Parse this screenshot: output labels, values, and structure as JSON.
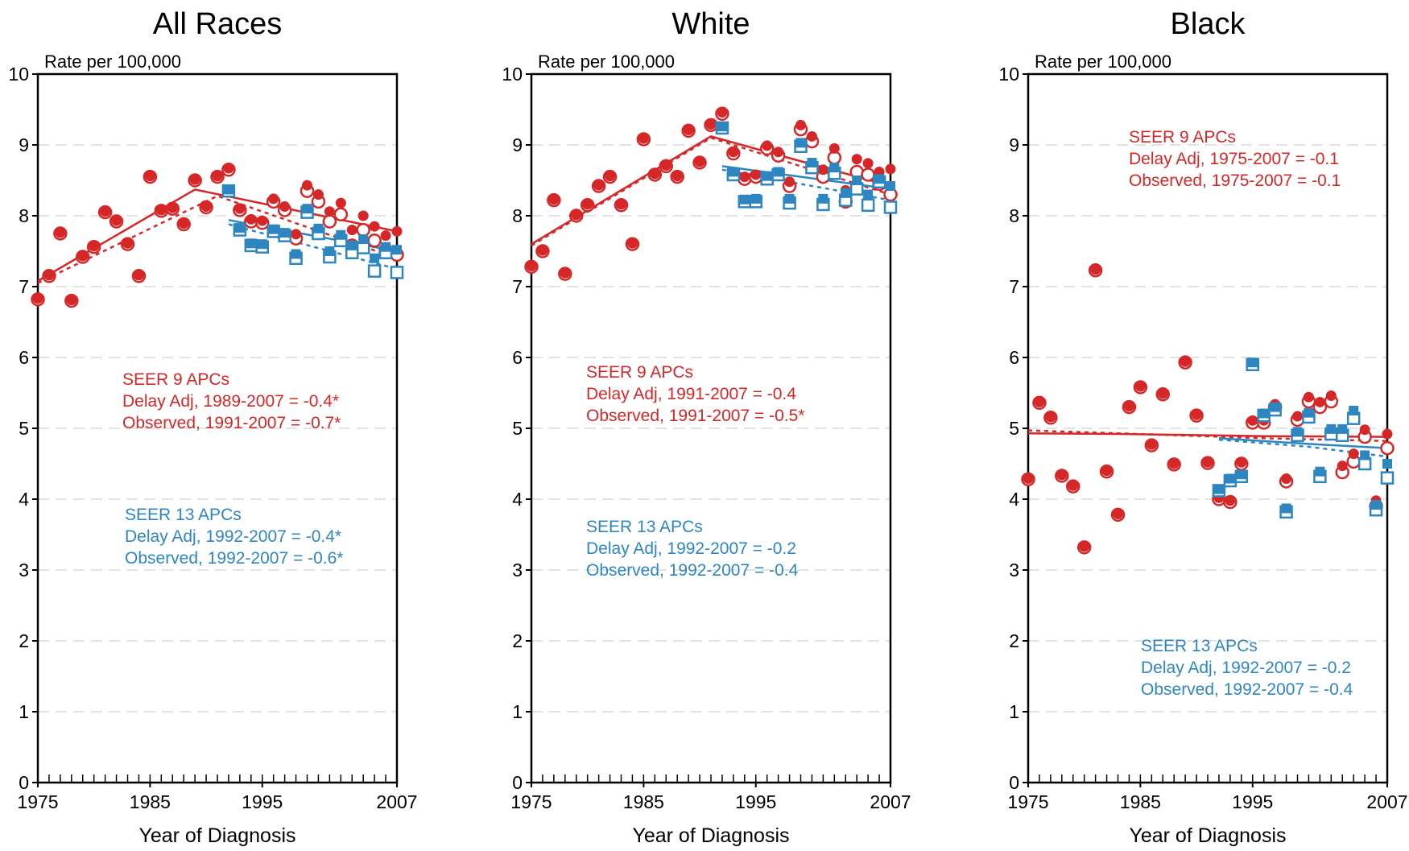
{
  "colors": {
    "seer9": "#d62728",
    "seer13": "#2e86c1",
    "grid": "#e3e3e3",
    "axis": "#000000"
  },
  "chart_data": [
    {
      "type": "scatter",
      "title": "All Races",
      "ylabel": "Rate per 100,000",
      "xlabel": "Year of Diagnosis",
      "xlim": [
        1975,
        2007
      ],
      "ylim": [
        0,
        10
      ],
      "xticks": [
        "1975",
        "1985",
        "1995",
        "2007"
      ],
      "yticks": [
        "0",
        "1",
        "2",
        "3",
        "4",
        "5",
        "6",
        "7",
        "8",
        "9",
        "10"
      ],
      "grid": true,
      "annotations": {
        "seer9": [
          "SEER 9 APCs",
          "Delay Adj, 1989-2007 = -0.4*",
          "Observed, 1991-2007 = -0.7*"
        ],
        "seer13": [
          "SEER 13 APCs",
          "Delay Adj, 1992-2007 = -0.4*",
          "Observed, 1992-2007 = -0.6*"
        ]
      },
      "series": [
        {
          "group": "seer9",
          "kind": "observed",
          "x": [
            1975,
            1976,
            1977,
            1978,
            1979,
            1980,
            1981,
            1982,
            1983,
            1984,
            1985,
            1986,
            1987,
            1988,
            1989,
            1990,
            1991,
            1992,
            1993,
            1994,
            1995,
            1996,
            1997,
            1998,
            1999,
            2000,
            2001,
            2002,
            2003,
            2004,
            2005,
            2006,
            2007
          ],
          "y": [
            6.82,
            7.15,
            7.75,
            6.8,
            7.42,
            7.56,
            8.05,
            7.92,
            7.6,
            7.15,
            8.55,
            8.07,
            8.1,
            7.88,
            8.5,
            8.12,
            8.55,
            8.65,
            8.08,
            7.92,
            7.9,
            8.2,
            8.08,
            7.68,
            8.35,
            8.2,
            7.92,
            8.02,
            7.58,
            7.8,
            7.65,
            7.52,
            7.45
          ]
        },
        {
          "group": "seer9",
          "kind": "delay",
          "x": [
            1975,
            1976,
            1977,
            1978,
            1979,
            1980,
            1981,
            1982,
            1983,
            1984,
            1985,
            1986,
            1987,
            1988,
            1989,
            1990,
            1991,
            1992,
            1993,
            1994,
            1995,
            1996,
            1997,
            1998,
            1999,
            2000,
            2001,
            2002,
            2003,
            2004,
            2005,
            2006,
            2007
          ],
          "y": [
            6.83,
            7.16,
            7.76,
            6.81,
            7.43,
            7.57,
            8.06,
            7.93,
            7.61,
            7.16,
            8.56,
            8.08,
            8.11,
            7.89,
            8.51,
            8.13,
            8.56,
            8.67,
            8.1,
            7.95,
            7.93,
            8.24,
            8.13,
            7.74,
            8.43,
            8.3,
            8.06,
            8.18,
            7.8,
            8.0,
            7.85,
            7.72,
            7.78
          ]
        },
        {
          "group": "seer13",
          "kind": "observed",
          "x": [
            1992,
            1993,
            1994,
            1995,
            1996,
            1997,
            1998,
            1999,
            2000,
            2001,
            2002,
            2003,
            2004,
            2005,
            2006,
            2007
          ],
          "y": [
            8.35,
            7.8,
            7.58,
            7.56,
            7.78,
            7.72,
            7.4,
            8.05,
            7.75,
            7.42,
            7.65,
            7.48,
            7.55,
            7.22,
            7.48,
            7.2
          ]
        },
        {
          "group": "seer13",
          "kind": "delay",
          "x": [
            1992,
            1993,
            1994,
            1995,
            1996,
            1997,
            1998,
            1999,
            2000,
            2001,
            2002,
            2003,
            2004,
            2005,
            2006,
            2007
          ],
          "y": [
            8.37,
            7.83,
            7.61,
            7.6,
            7.81,
            7.76,
            7.46,
            8.1,
            7.82,
            7.5,
            7.73,
            7.58,
            7.67,
            7.4,
            7.56,
            7.52
          ]
        }
      ],
      "trends": [
        {
          "group": "seer9",
          "kind": "delay",
          "points": [
            [
              1975,
              7.08
            ],
            [
              1989,
              8.37
            ],
            [
              2007,
              7.78
            ]
          ]
        },
        {
          "group": "seer9",
          "kind": "observed",
          "points": [
            [
              1975,
              7.05
            ],
            [
              1991,
              8.28
            ],
            [
              2007,
              7.4
            ]
          ]
        },
        {
          "group": "seer13",
          "kind": "delay",
          "points": [
            [
              1992,
              7.94
            ],
            [
              2007,
              7.5
            ]
          ]
        },
        {
          "group": "seer13",
          "kind": "observed",
          "points": [
            [
              1992,
              7.88
            ],
            [
              2007,
              7.25
            ]
          ]
        }
      ]
    },
    {
      "type": "scatter",
      "title": "White",
      "ylabel": "Rate per 100,000",
      "xlabel": "Year of Diagnosis",
      "xlim": [
        1975,
        2007
      ],
      "ylim": [
        0,
        10
      ],
      "xticks": [
        "1975",
        "1985",
        "1995",
        "2007"
      ],
      "yticks": [
        "0",
        "1",
        "2",
        "3",
        "4",
        "5",
        "6",
        "7",
        "8",
        "9",
        "10"
      ],
      "grid": true,
      "annotations": {
        "seer9": [
          "SEER 9 APCs",
          "Delay Adj, 1991-2007 = -0.4",
          "Observed, 1991-2007 = -0.5*"
        ],
        "seer13": [
          "SEER 13 APCs",
          "Delay Adj, 1992-2007 = -0.2",
          "Observed, 1992-2007 = -0.4"
        ]
      },
      "series": [
        {
          "group": "seer9",
          "kind": "observed",
          "x": [
            1975,
            1976,
            1977,
            1978,
            1979,
            1980,
            1981,
            1982,
            1983,
            1984,
            1985,
            1986,
            1987,
            1988,
            1989,
            1990,
            1991,
            1992,
            1993,
            1994,
            1995,
            1996,
            1997,
            1998,
            1999,
            2000,
            2001,
            2002,
            2003,
            2004,
            2005,
            2006,
            2007
          ],
          "y": [
            7.28,
            7.5,
            8.22,
            7.18,
            8.0,
            8.15,
            8.42,
            8.55,
            8.15,
            7.6,
            9.08,
            8.58,
            8.7,
            8.55,
            9.2,
            8.75,
            9.28,
            9.44,
            8.88,
            8.52,
            8.55,
            8.95,
            8.85,
            8.42,
            9.22,
            9.05,
            8.55,
            8.82,
            8.2,
            8.62,
            8.58,
            8.45,
            8.3
          ]
        },
        {
          "group": "seer9",
          "kind": "delay",
          "x": [
            1975,
            1976,
            1977,
            1978,
            1979,
            1980,
            1981,
            1982,
            1983,
            1984,
            1985,
            1986,
            1987,
            1988,
            1989,
            1990,
            1991,
            1992,
            1993,
            1994,
            1995,
            1996,
            1997,
            1998,
            1999,
            2000,
            2001,
            2002,
            2003,
            2004,
            2005,
            2006,
            2007
          ],
          "y": [
            7.29,
            7.51,
            8.23,
            7.19,
            8.01,
            8.16,
            8.43,
            8.56,
            8.16,
            7.61,
            9.09,
            8.59,
            8.71,
            8.56,
            9.21,
            8.76,
            9.29,
            9.46,
            8.9,
            8.55,
            8.58,
            8.99,
            8.9,
            8.48,
            9.28,
            9.12,
            8.65,
            8.95,
            8.36,
            8.8,
            8.74,
            8.62,
            8.66
          ]
        },
        {
          "group": "seer13",
          "kind": "observed",
          "x": [
            1992,
            1993,
            1994,
            1995,
            1996,
            1997,
            1998,
            1999,
            2000,
            2001,
            2002,
            2003,
            2004,
            2005,
            2006,
            2007
          ],
          "y": [
            9.24,
            8.58,
            8.2,
            8.2,
            8.52,
            8.58,
            8.18,
            8.98,
            8.68,
            8.16,
            8.6,
            8.22,
            8.38,
            8.15,
            8.48,
            8.12
          ]
        },
        {
          "group": "seer13",
          "kind": "delay",
          "x": [
            1992,
            1993,
            1994,
            1995,
            1996,
            1997,
            1998,
            1999,
            2000,
            2001,
            2002,
            2003,
            2004,
            2005,
            2006,
            2007
          ],
          "y": [
            9.26,
            8.62,
            8.23,
            8.24,
            8.56,
            8.62,
            8.24,
            9.03,
            8.75,
            8.24,
            8.68,
            8.32,
            8.5,
            8.3,
            8.52,
            8.42
          ]
        }
      ],
      "trends": [
        {
          "group": "seer9",
          "kind": "delay",
          "points": [
            [
              1975,
              7.6
            ],
            [
              1991,
              9.12
            ],
            [
              2007,
              8.42
            ]
          ]
        },
        {
          "group": "seer9",
          "kind": "observed",
          "points": [
            [
              1975,
              7.58
            ],
            [
              1991,
              9.1
            ],
            [
              2007,
              8.3
            ]
          ]
        },
        {
          "group": "seer13",
          "kind": "delay",
          "points": [
            [
              1992,
              8.7
            ],
            [
              2007,
              8.38
            ]
          ]
        },
        {
          "group": "seer13",
          "kind": "observed",
          "points": [
            [
              1992,
              8.65
            ],
            [
              2007,
              8.22
            ]
          ]
        }
      ]
    },
    {
      "type": "scatter",
      "title": "Black",
      "ylabel": "Rate per 100,000",
      "xlabel": "Year of Diagnosis",
      "xlim": [
        1975,
        2007
      ],
      "ylim": [
        0,
        10
      ],
      "xticks": [
        "1975",
        "1985",
        "1995",
        "2007"
      ],
      "yticks": [
        "0",
        "1",
        "2",
        "3",
        "4",
        "5",
        "6",
        "7",
        "8",
        "9",
        "10"
      ],
      "grid": true,
      "annotations": {
        "seer9": [
          "SEER 9 APCs",
          "Delay Adj, 1975-2007 = -0.1",
          "Observed, 1975-2007 = -0.1"
        ],
        "seer13": [
          "SEER 13 APCs",
          "Delay Adj, 1992-2007 = -0.2",
          "Observed, 1992-2007 = -0.4"
        ]
      },
      "series": [
        {
          "group": "seer9",
          "kind": "observed",
          "x": [
            1975,
            1976,
            1977,
            1978,
            1979,
            1980,
            1981,
            1982,
            1983,
            1984,
            1985,
            1986,
            1987,
            1988,
            1989,
            1990,
            1991,
            1992,
            1993,
            1994,
            1995,
            1996,
            1997,
            1998,
            1999,
            2000,
            2001,
            2002,
            2003,
            2004,
            2005,
            2006,
            2007
          ],
          "y": [
            4.28,
            5.36,
            5.15,
            4.33,
            4.18,
            3.32,
            7.23,
            4.39,
            3.78,
            5.3,
            5.58,
            4.76,
            5.48,
            4.49,
            5.93,
            5.18,
            4.51,
            4.0,
            3.96,
            4.5,
            5.08,
            5.08,
            5.3,
            4.25,
            5.12,
            5.38,
            5.3,
            5.38,
            4.38,
            4.53,
            4.88,
            3.9,
            4.72
          ]
        },
        {
          "group": "seer9",
          "kind": "delay",
          "x": [
            1975,
            1976,
            1977,
            1978,
            1979,
            1980,
            1981,
            1982,
            1983,
            1984,
            1985,
            1986,
            1987,
            1988,
            1989,
            1990,
            1991,
            1992,
            1993,
            1994,
            1995,
            1996,
            1997,
            1998,
            1999,
            2000,
            2001,
            2002,
            2003,
            2004,
            2005,
            2006,
            2007
          ],
          "y": [
            4.29,
            5.37,
            5.16,
            4.34,
            4.19,
            3.33,
            7.24,
            4.4,
            3.79,
            5.31,
            5.59,
            4.77,
            5.49,
            4.5,
            5.94,
            5.19,
            4.52,
            4.02,
            3.98,
            4.52,
            5.11,
            5.11,
            5.34,
            4.29,
            5.17,
            5.44,
            5.37,
            5.46,
            4.47,
            4.64,
            4.98,
            3.98,
            4.92
          ]
        },
        {
          "group": "seer13",
          "kind": "observed",
          "x": [
            1992,
            1993,
            1994,
            1995,
            1996,
            1997,
            1998,
            1999,
            2000,
            2001,
            2002,
            2003,
            2004,
            2005,
            2006,
            2007
          ],
          "y": [
            4.12,
            4.26,
            4.32,
            5.9,
            5.18,
            5.26,
            3.82,
            4.9,
            5.16,
            4.32,
            4.92,
            4.9,
            5.14,
            4.5,
            3.85,
            4.3
          ]
        },
        {
          "group": "seer13",
          "kind": "delay",
          "x": [
            1992,
            1993,
            1994,
            1995,
            1996,
            1997,
            1998,
            1999,
            2000,
            2001,
            2002,
            2003,
            2004,
            2005,
            2006,
            2007
          ],
          "y": [
            4.14,
            4.29,
            4.35,
            5.93,
            5.21,
            5.3,
            3.87,
            4.95,
            5.22,
            4.39,
            4.99,
            4.99,
            5.25,
            4.62,
            3.92,
            4.5
          ]
        }
      ],
      "trends": [
        {
          "group": "seer9",
          "kind": "delay",
          "points": [
            [
              1975,
              4.93
            ],
            [
              1983,
              4.92
            ],
            [
              1996,
              4.89
            ],
            [
              2007,
              4.88
            ]
          ]
        },
        {
          "group": "seer9",
          "kind": "observed",
          "points": [
            [
              1975,
              4.97
            ],
            [
              1983,
              4.93
            ],
            [
              1996,
              4.86
            ],
            [
              2007,
              4.82
            ]
          ]
        },
        {
          "group": "seer13",
          "kind": "delay",
          "points": [
            [
              1992,
              4.86
            ],
            [
              2000,
              4.78
            ],
            [
              2007,
              4.72
            ]
          ]
        },
        {
          "group": "seer13",
          "kind": "observed",
          "points": [
            [
              1992,
              4.84
            ],
            [
              2000,
              4.74
            ],
            [
              2007,
              4.6
            ]
          ]
        }
      ]
    }
  ]
}
